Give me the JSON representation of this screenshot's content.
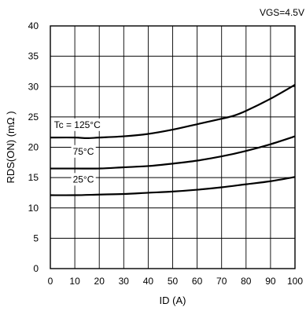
{
  "chart_data": {
    "type": "line",
    "condition": "VGS=4.5V",
    "xlabel": "ID (A)",
    "ylabel": "RDS(ON) (mΩ )",
    "xlim": [
      0,
      100
    ],
    "ylim": [
      0,
      40
    ],
    "xticks": [
      0,
      10,
      20,
      30,
      40,
      50,
      60,
      70,
      80,
      90,
      100
    ],
    "yticks": [
      0,
      5,
      10,
      15,
      20,
      25,
      30,
      35,
      40
    ],
    "grid": true,
    "series": [
      {
        "name": "Tc = 125°C",
        "x": [
          0,
          10,
          15,
          20,
          30,
          40,
          50,
          60,
          70,
          75,
          80,
          90,
          100
        ],
        "values": [
          21.6,
          21.6,
          21.5,
          21.6,
          21.8,
          22.2,
          22.9,
          23.8,
          24.7,
          25.2,
          26.0,
          28.0,
          30.3
        ]
      },
      {
        "name": "75°C",
        "x": [
          0,
          10,
          20,
          30,
          40,
          50,
          60,
          70,
          80,
          90,
          100
        ],
        "values": [
          16.5,
          16.5,
          16.5,
          16.7,
          16.9,
          17.3,
          17.8,
          18.5,
          19.4,
          20.5,
          21.8
        ]
      },
      {
        "name": "25°C",
        "x": [
          0,
          10,
          20,
          30,
          40,
          50,
          60,
          70,
          80,
          90,
          100
        ],
        "values": [
          12.1,
          12.1,
          12.2,
          12.3,
          12.5,
          12.7,
          13.0,
          13.4,
          13.9,
          14.4,
          15.1
        ]
      }
    ],
    "annotations": [
      {
        "text": "Tc = 125°C",
        "x": 11,
        "y": 23.2
      },
      {
        "text": "75°C",
        "x": 13.5,
        "y": 18.8
      },
      {
        "text": "25°C",
        "x": 13.5,
        "y": 14.2
      }
    ]
  }
}
